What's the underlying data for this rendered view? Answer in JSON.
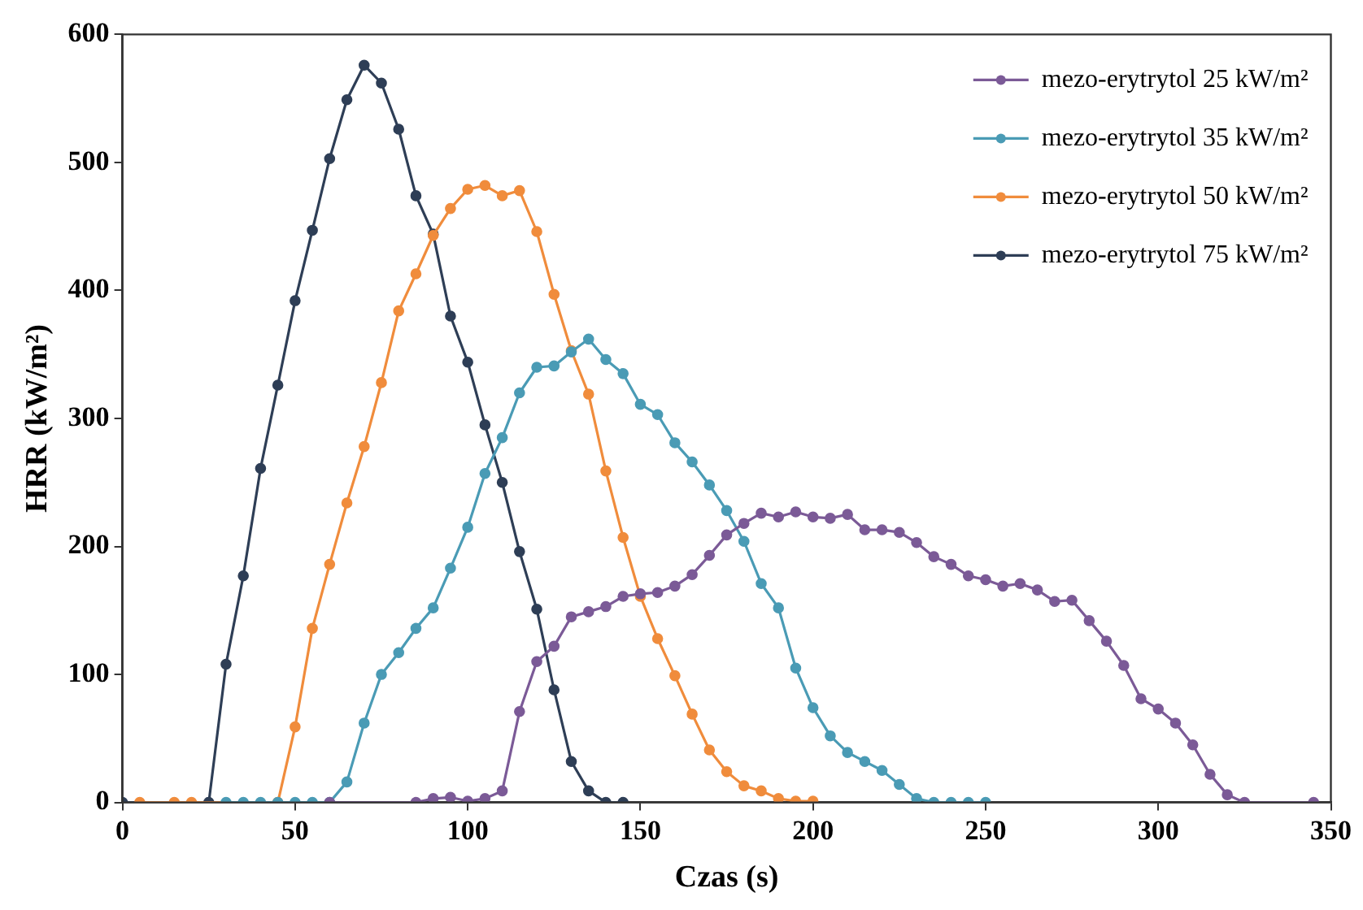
{
  "chart_data": {
    "type": "line",
    "xlabel": "Czas (s)",
    "ylabel": "HRR (kW/m²)",
    "xlim": [
      0,
      350
    ],
    "xticks": [
      0,
      50,
      100,
      150,
      200,
      250,
      300,
      350
    ],
    "ylim": [
      0,
      600
    ],
    "yticks": [
      0,
      100,
      200,
      300,
      400,
      500,
      600
    ],
    "grid": false,
    "legend": "top right",
    "marker": "circle",
    "line_style": "solid",
    "series": [
      {
        "name": "mezo-erytrytol 25 kW/m²",
        "color": "#7b5a97",
        "x": [
          60,
          85,
          90,
          95,
          100,
          105,
          110,
          115,
          120,
          125,
          130,
          135,
          140,
          145,
          150,
          155,
          160,
          165,
          170,
          175,
          180,
          185,
          190,
          195,
          200,
          205,
          210,
          215,
          220,
          225,
          230,
          235,
          240,
          245,
          250,
          255,
          260,
          265,
          270,
          275,
          280,
          285,
          290,
          295,
          300,
          305,
          310,
          315,
          320,
          325,
          345
        ],
        "values": [
          0,
          0,
          3,
          4,
          1,
          3,
          9,
          71,
          110,
          122,
          145,
          149,
          153,
          161,
          163,
          164,
          169,
          178,
          193,
          209,
          218,
          226,
          223,
          227,
          223,
          222,
          225,
          213,
          213,
          211,
          203,
          192,
          186,
          177,
          174,
          169,
          171,
          166,
          157,
          158,
          142,
          126,
          107,
          81,
          73,
          62,
          45,
          22,
          6,
          0,
          0
        ]
      },
      {
        "name": "mezo-erytrytol 35 kW/m²",
        "color": "#4a9bb5",
        "x": [
          30,
          35,
          40,
          45,
          50,
          55,
          60,
          65,
          70,
          75,
          80,
          85,
          90,
          95,
          100,
          105,
          110,
          115,
          120,
          125,
          130,
          135,
          140,
          145,
          150,
          155,
          160,
          165,
          170,
          175,
          180,
          185,
          190,
          195,
          200,
          205,
          210,
          215,
          220,
          225,
          230,
          235,
          240,
          245,
          250
        ],
        "values": [
          0,
          0,
          0,
          0,
          0,
          0,
          0,
          16,
          62,
          100,
          117,
          136,
          152,
          183,
          215,
          257,
          285,
          320,
          340,
          341,
          352,
          362,
          346,
          335,
          311,
          303,
          281,
          266,
          248,
          228,
          204,
          171,
          152,
          105,
          74,
          52,
          39,
          32,
          25,
          14,
          3,
          0,
          0,
          0,
          0
        ]
      },
      {
        "name": "mezo-erytrytol 50 kW/m²",
        "color": "#f08c3c",
        "x": [
          5,
          15,
          20,
          45,
          50,
          55,
          60,
          65,
          70,
          75,
          80,
          85,
          90,
          95,
          100,
          105,
          110,
          115,
          120,
          125,
          130,
          135,
          140,
          145,
          150,
          155,
          160,
          165,
          170,
          175,
          180,
          185,
          190,
          195,
          200
        ],
        "values": [
          0,
          0,
          0,
          0,
          59,
          136,
          186,
          234,
          278,
          328,
          384,
          413,
          443,
          464,
          479,
          482,
          474,
          478,
          446,
          397,
          353,
          319,
          259,
          207,
          161,
          128,
          99,
          69,
          41,
          24,
          13,
          9,
          3,
          1,
          1
        ]
      },
      {
        "name": "mezo-erytrytol 75 kW/m²",
        "color": "#2e3e56",
        "x": [
          0,
          25,
          30,
          35,
          40,
          45,
          50,
          55,
          60,
          65,
          70,
          75,
          80,
          85,
          90,
          95,
          100,
          105,
          110,
          115,
          120,
          125,
          130,
          135,
          140,
          145
        ],
        "values": [
          0,
          0,
          108,
          177,
          261,
          326,
          392,
          447,
          503,
          549,
          576,
          562,
          526,
          474,
          444,
          380,
          344,
          295,
          250,
          196,
          151,
          88,
          32,
          9,
          0,
          0
        ]
      }
    ]
  }
}
